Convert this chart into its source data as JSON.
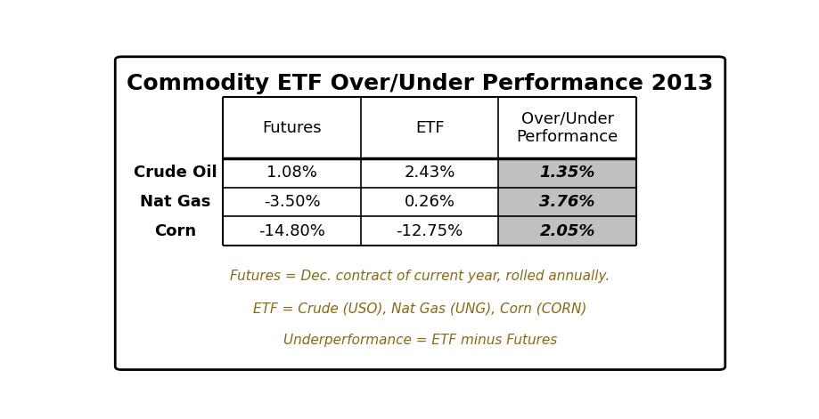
{
  "title": "Commodity ETF Over/Under Performance 2013",
  "col_headers": [
    "Futures",
    "ETF",
    "Over/Under\nPerformance"
  ],
  "row_labels": [
    "Crude Oil",
    "Nat Gas",
    "Corn"
  ],
  "table_data": [
    [
      "1.08%",
      "2.43%",
      "1.35%"
    ],
    [
      "-3.50%",
      "0.26%",
      "3.76%"
    ],
    [
      "-14.80%",
      "-12.75%",
      "2.05%"
    ]
  ],
  "footnotes": [
    "Futures = Dec. contract of current year, rolled annually.",
    "ETF = Crude (USO), Nat Gas (UNG), Corn (CORN)",
    "Underperformance = ETF minus Futures"
  ],
  "footnote_color": "#8B6914",
  "gray_col_color": "#C0C0C0",
  "outer_box_color": "#000000",
  "title_fontsize": 18,
  "header_fontsize": 13,
  "cell_fontsize": 13,
  "row_label_fontsize": 13,
  "footnote_fontsize": 11,
  "fig_bg": "#FFFFFF"
}
